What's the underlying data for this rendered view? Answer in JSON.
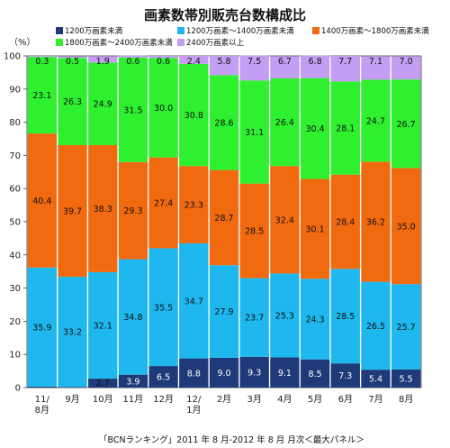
{
  "chart_data": {
    "type": "bar",
    "stacked": true,
    "title": "画素数帯別販売台数構成比",
    "ylabel": "（%）",
    "ylim": [
      0,
      100
    ],
    "yticks": [
      0,
      10,
      20,
      30,
      40,
      50,
      60,
      70,
      80,
      90,
      100
    ],
    "categories": [
      "11/\n8月",
      "9月",
      "10月",
      "11月",
      "12月",
      "12/\n1月",
      "2月",
      "3月",
      "4月",
      "5月",
      "6月",
      "7月",
      "8月"
    ],
    "series": [
      {
        "name": "1200万画素未満",
        "color": "#1f3a78",
        "values": [
          0.3,
          0.2,
          2.7,
          3.9,
          6.5,
          8.8,
          9.0,
          9.3,
          9.1,
          8.5,
          7.3,
          5.4,
          5.5
        ]
      },
      {
        "name": "1200万画素～1400万画素未満",
        "color": "#1eb8ee",
        "values": [
          35.9,
          33.2,
          32.1,
          34.8,
          35.5,
          34.7,
          27.9,
          23.7,
          25.3,
          24.3,
          28.5,
          26.5,
          25.7
        ]
      },
      {
        "name": "1400万画素～1800万画素未満",
        "color": "#f26a10",
        "values": [
          40.4,
          39.7,
          38.3,
          29.3,
          27.4,
          23.3,
          28.7,
          28.5,
          32.4,
          30.1,
          28.4,
          36.2,
          35.0
        ]
      },
      {
        "name": "1800万画素～2400万画素未満",
        "color": "#2ef02e",
        "values": [
          23.1,
          26.3,
          24.9,
          31.5,
          30.0,
          30.8,
          28.6,
          31.1,
          26.4,
          30.4,
          28.1,
          24.7,
          26.7
        ]
      },
      {
        "name": "2400万画素以上",
        "color": "#c49ef2",
        "values": [
          0.3,
          0.5,
          1.9,
          0.6,
          0.6,
          2.4,
          5.8,
          7.5,
          6.7,
          6.8,
          7.7,
          7.1,
          7.0
        ]
      }
    ],
    "grid": false,
    "legend_position": "top"
  },
  "source_note": "「BCNランキング」2011 年 8 月-2012 年 8 月 月次＜最大パネル＞"
}
